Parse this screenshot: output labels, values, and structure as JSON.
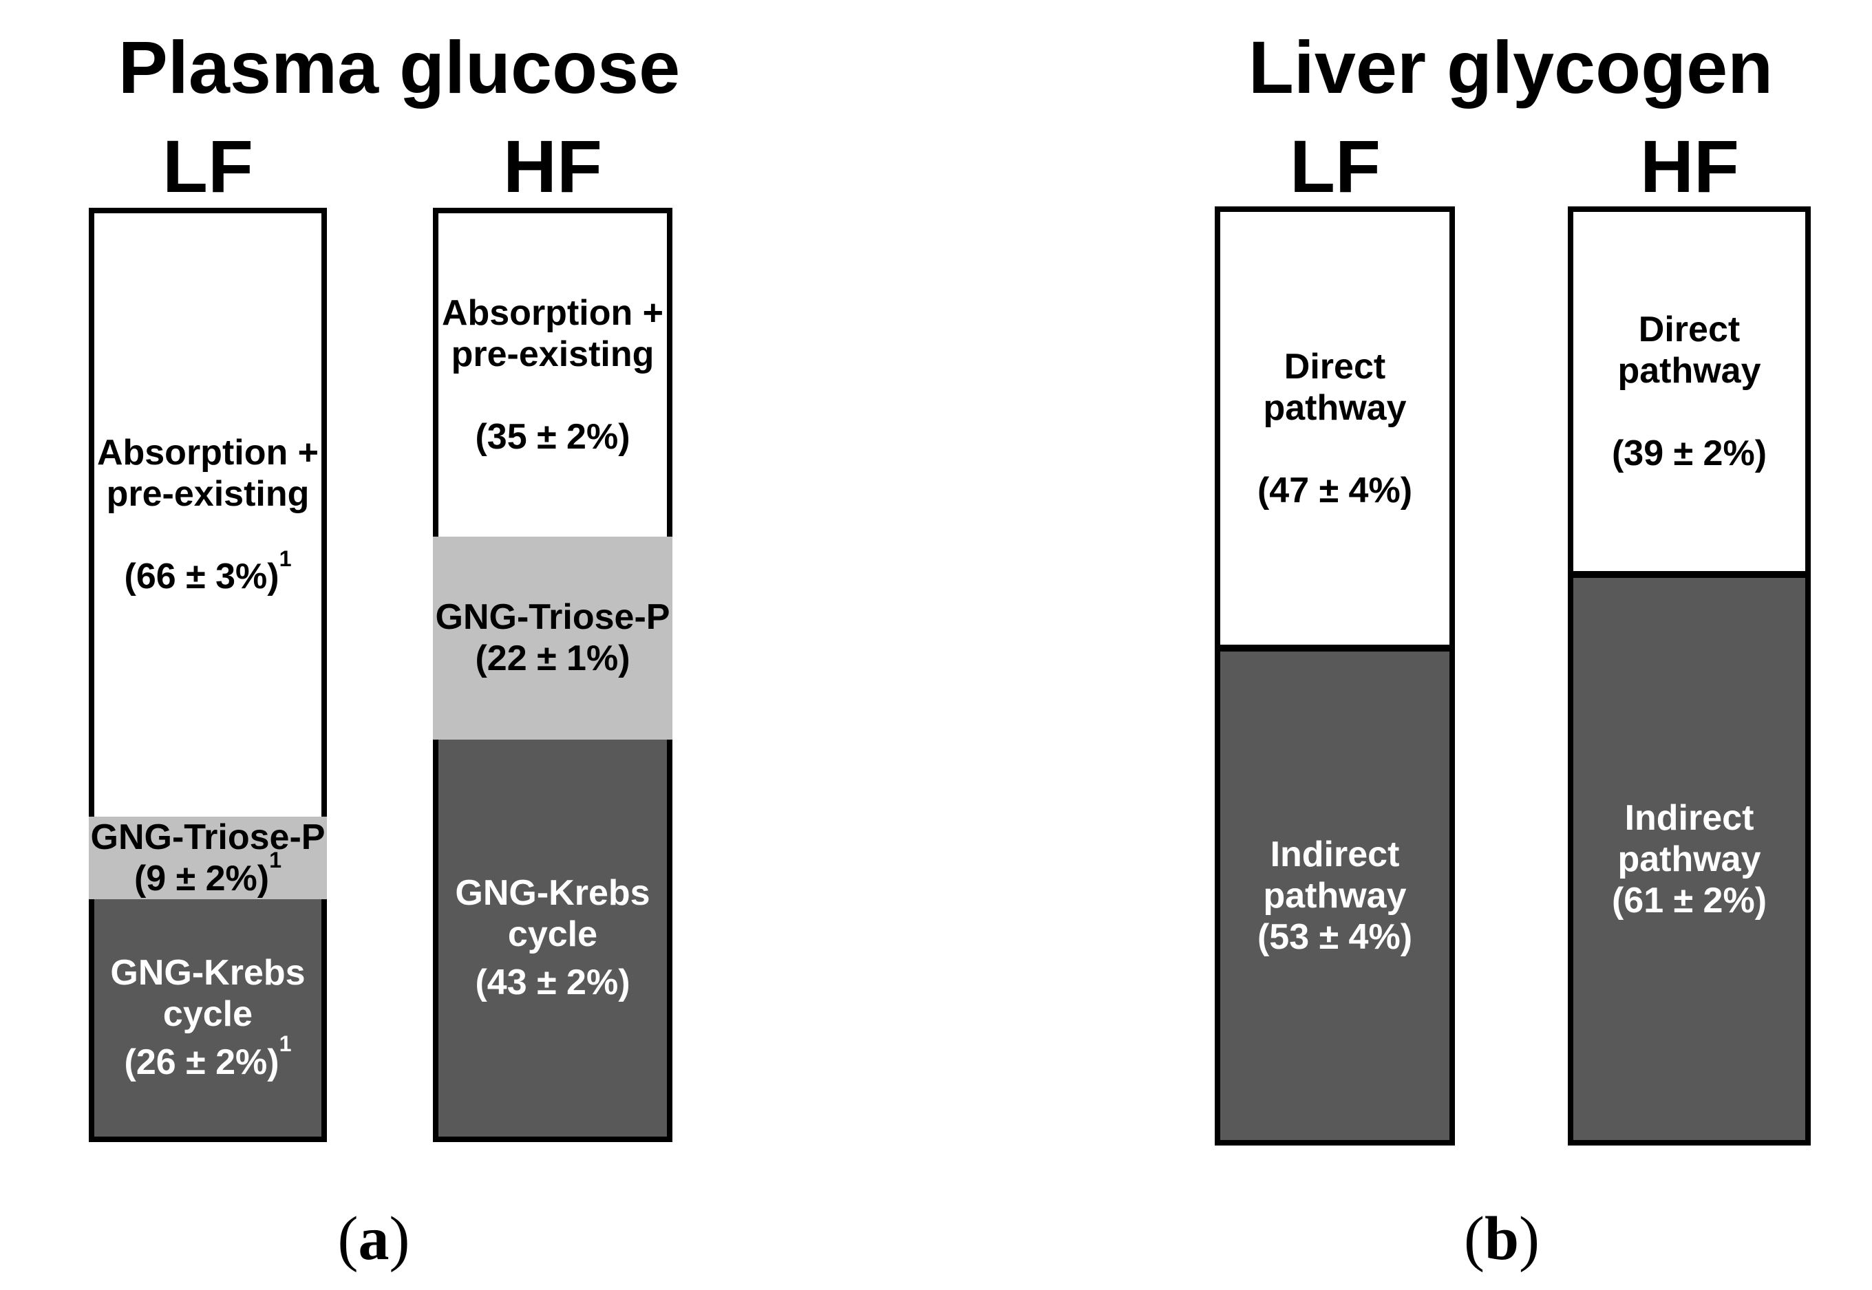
{
  "colors": {
    "segment_dark": "#595959",
    "segment_light_gray": "#c0c0c0",
    "segment_white": "#ffffff",
    "outline_black": "#000000"
  },
  "panels": [
    {
      "title": "Plasma glucose",
      "caption": {
        "open": "(",
        "letter": "a",
        "close": ")"
      },
      "columns": [
        {
          "label": "LF",
          "segments": [
            {
              "lines": [
                "Absorption +",
                "pre-existing"
              ],
              "value": "(66 ± 3%)",
              "sup": "1",
              "pct": 66
            },
            {
              "lines": [
                "GNG-Triose-P"
              ],
              "value": "(9 ± 2%)",
              "sup": "1",
              "pct": 9
            },
            {
              "lines": [
                "GNG-Krebs",
                "cycle"
              ],
              "value": "(26 ± 2%)",
              "sup": "1",
              "pct": 26
            }
          ]
        },
        {
          "label": "HF",
          "segments": [
            {
              "lines": [
                "Absorption +",
                "pre-existing"
              ],
              "value": "(35 ± 2%)",
              "pct": 35
            },
            {
              "lines": [
                "GNG-Triose-P"
              ],
              "value": "(22 ± 1%)",
              "pct": 22
            },
            {
              "lines": [
                "GNG-Krebs",
                "cycle"
              ],
              "value": "(43 ± 2%)",
              "pct": 43
            }
          ]
        }
      ]
    },
    {
      "title": "Liver glycogen",
      "caption": {
        "open": "(",
        "letter": "b",
        "close": ")"
      },
      "columns": [
        {
          "label": "LF",
          "segments": [
            {
              "lines": [
                "Direct",
                "pathway"
              ],
              "value": "(47 ± 4%)",
              "pct": 47
            },
            {
              "lines": [
                "Indirect",
                "pathway"
              ],
              "value": "(53 ± 4%)",
              "pct": 53
            }
          ]
        },
        {
          "label": "HF",
          "segments": [
            {
              "lines": [
                "Direct",
                "pathway"
              ],
              "value": "(39 ± 2%)",
              "pct": 39
            },
            {
              "lines": [
                "Indirect",
                "pathway"
              ],
              "value": "(61 ± 2%)",
              "pct": 61
            }
          ]
        }
      ]
    }
  ],
  "chart_data": [
    {
      "type": "bar",
      "stacked": true,
      "orientation": "vertical",
      "title": "Plasma glucose",
      "categories": [
        "LF",
        "HF"
      ],
      "series": [
        {
          "name": "Absorption + pre-existing",
          "values": [
            66,
            35
          ],
          "errors": [
            3,
            2
          ],
          "color": "#ffffff"
        },
        {
          "name": "GNG-Triose-P",
          "values": [
            9,
            22
          ],
          "errors": [
            2,
            1
          ],
          "color": "#c0c0c0"
        },
        {
          "name": "GNG-Krebs cycle",
          "values": [
            26,
            43
          ],
          "errors": [
            2,
            2
          ],
          "color": "#595959"
        }
      ],
      "unit": "%",
      "ylim": [
        0,
        100
      ],
      "grid": false,
      "legend": "labels inside segments",
      "footnote_marker": "1 (applies to all LF segment values)",
      "panel_label": "(a)"
    },
    {
      "type": "bar",
      "stacked": true,
      "orientation": "vertical",
      "title": "Liver glycogen",
      "categories": [
        "LF",
        "HF"
      ],
      "series": [
        {
          "name": "Direct pathway",
          "values": [
            47,
            39
          ],
          "errors": [
            4,
            2
          ],
          "color": "#ffffff"
        },
        {
          "name": "Indirect pathway",
          "values": [
            53,
            61
          ],
          "errors": [
            4,
            2
          ],
          "color": "#595959"
        }
      ],
      "unit": "%",
      "ylim": [
        0,
        100
      ],
      "grid": false,
      "legend": "labels inside segments",
      "panel_label": "(b)"
    }
  ]
}
